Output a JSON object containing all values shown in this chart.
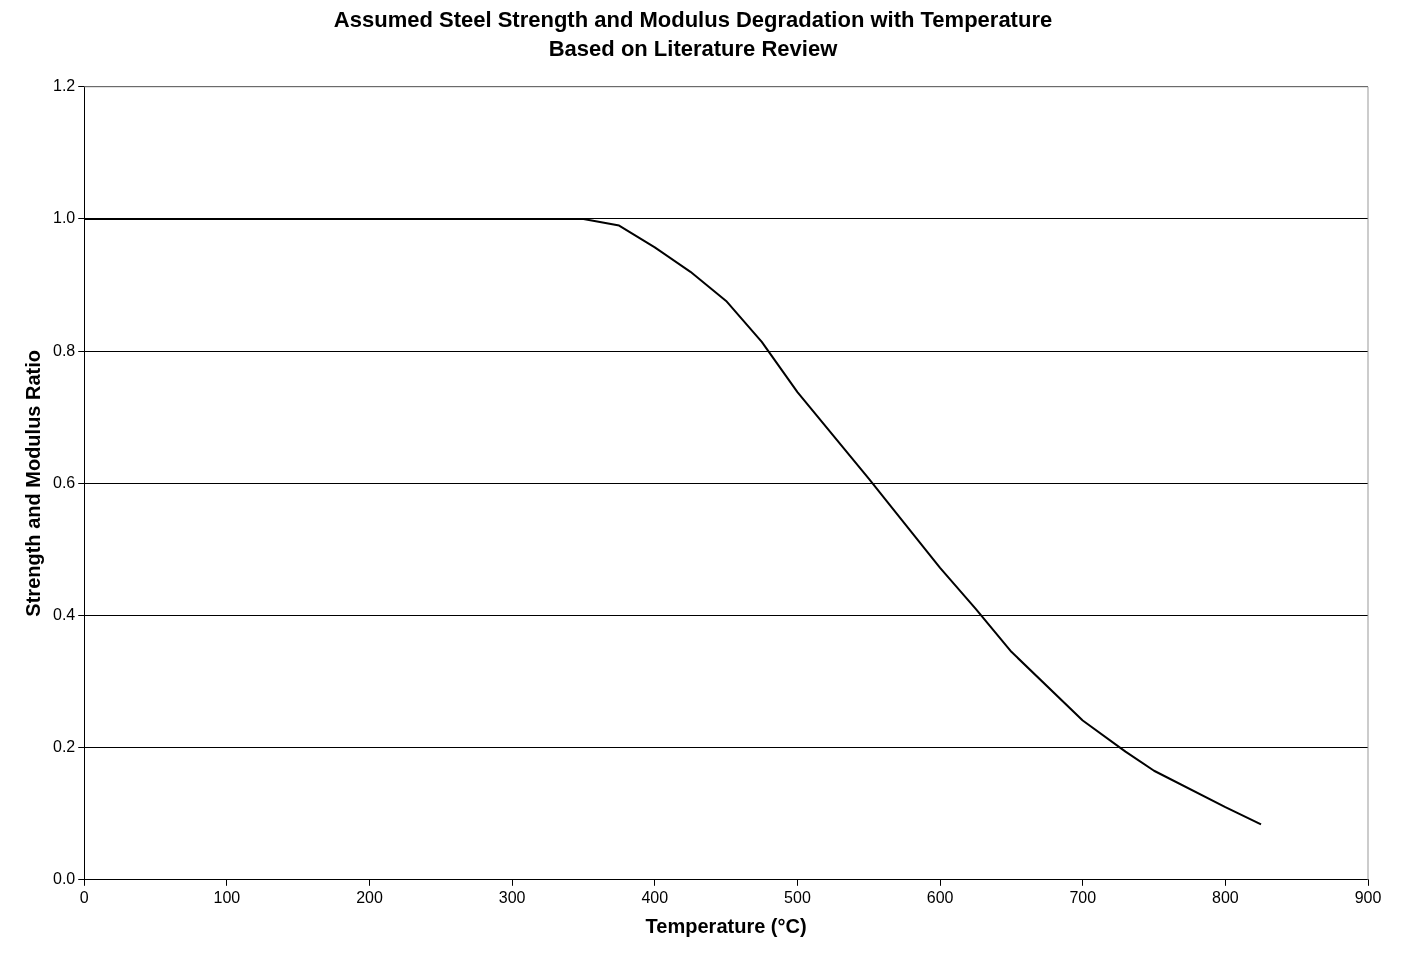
{
  "chart_data": {
    "type": "line",
    "title": "Assumed Steel Strength and Modulus Degradation with Temperature",
    "subtitle": "Based on Literature Review",
    "xlabel": "Temperature (°C)",
    "ylabel": "Strength and Modulus Ratio",
    "series": [
      {
        "color": "#000000",
        "x": [
          0,
          350,
          375,
          400,
          425,
          450,
          475,
          500,
          550,
          600,
          625,
          650,
          700,
          730,
          750,
          800,
          825
        ],
        "values": [
          1,
          1,
          0.99,
          0.957,
          0.92,
          0.876,
          0.814,
          0.738,
          0.607,
          0.472,
          0.41,
          0.345,
          0.241,
          0.194,
          0.165,
          0.11,
          0.084
        ]
      }
    ],
    "xlim": [
      0,
      900
    ],
    "xticks": [
      0,
      100,
      200,
      300,
      400,
      500,
      600,
      700,
      800,
      900
    ],
    "ylim": [
      0,
      1.2
    ],
    "yticks": [
      {
        "value": 0,
        "label": "0.0"
      },
      {
        "value": 0.2,
        "label": "0.2"
      },
      {
        "value": 0.4,
        "label": "0.4"
      },
      {
        "value": 0.6,
        "label": "0.6"
      },
      {
        "value": 0.8,
        "label": "0.8"
      },
      {
        "value": 1,
        "label": "1.0"
      },
      {
        "value": 1.2,
        "label": "1.2"
      }
    ],
    "grid": "y",
    "legend": false,
    "marker": "none",
    "line_style": "solid"
  }
}
